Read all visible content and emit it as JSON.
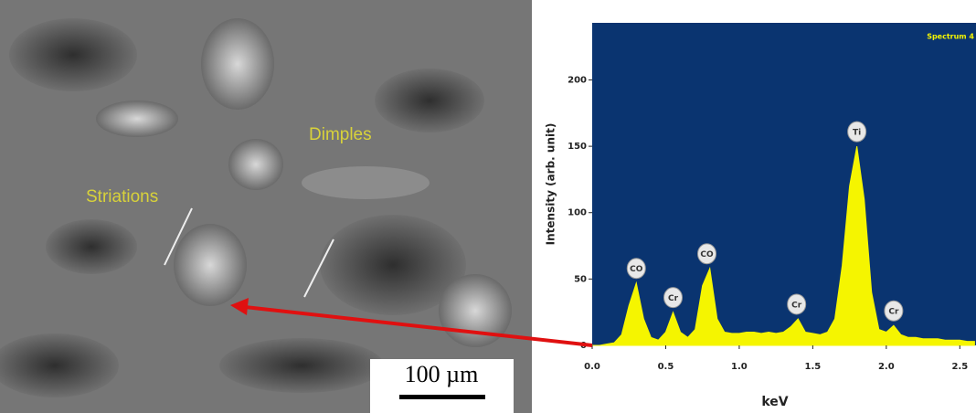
{
  "image": {
    "labels": [
      "Dimples",
      "Striations"
    ],
    "scale_bar": "100 µm"
  },
  "chart_data": {
    "type": "area",
    "title": "Spectrum 4",
    "xlabel": "keV",
    "ylabel": "Intensity (arb. unit)",
    "color": "#f5f500",
    "background": "#0a3470",
    "x": [
      0.0,
      0.05,
      0.1,
      0.15,
      0.2,
      0.25,
      0.3,
      0.35,
      0.4,
      0.45,
      0.5,
      0.55,
      0.6,
      0.65,
      0.7,
      0.75,
      0.8,
      0.85,
      0.9,
      0.95,
      1.0,
      1.05,
      1.1,
      1.15,
      1.2,
      1.25,
      1.3,
      1.35,
      1.4,
      1.45,
      1.5,
      1.55,
      1.6,
      1.65,
      1.7,
      1.75,
      1.8,
      1.85,
      1.9,
      1.95,
      2.0,
      2.05,
      2.1,
      2.15,
      2.2,
      2.25,
      2.3,
      2.35,
      2.4,
      2.45,
      2.5,
      2.55,
      2.6
    ],
    "values": [
      0,
      0,
      1,
      2,
      8,
      30,
      47,
      20,
      6,
      4,
      10,
      25,
      10,
      6,
      12,
      45,
      58,
      20,
      10,
      9,
      9,
      10,
      10,
      9,
      10,
      9,
      10,
      14,
      20,
      10,
      9,
      8,
      10,
      20,
      60,
      120,
      150,
      110,
      40,
      12,
      10,
      15,
      8,
      6,
      6,
      5,
      5,
      5,
      4,
      4,
      4,
      3,
      3
    ],
    "xlim": [
      0,
      2.61
    ],
    "ylim": [
      0,
      243
    ],
    "xticks": [
      {
        "value": 0,
        "label": "0.0"
      },
      0.5,
      {
        "value": 1,
        "label": "1.0"
      },
      1.5,
      {
        "value": 2,
        "label": "2.0"
      },
      2.5
    ],
    "yticks": [
      0,
      50,
      100,
      150,
      200
    ],
    "annotations": [
      {
        "text": "CO",
        "x": 0.3,
        "y": 47
      },
      {
        "text": "Cr",
        "x": 0.55,
        "y": 25
      },
      {
        "text": "CO",
        "x": 0.78,
        "y": 58
      },
      {
        "text": "Cr",
        "x": 1.39,
        "y": 20
      },
      {
        "text": "Ti",
        "x": 1.8,
        "y": 150
      },
      {
        "text": "Cr",
        "x": 2.05,
        "y": 15
      }
    ]
  }
}
